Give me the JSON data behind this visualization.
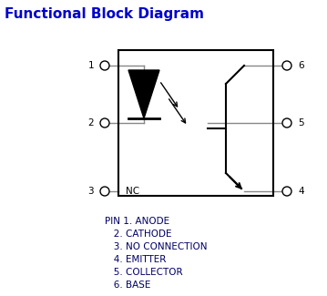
{
  "title": "Functional Block Diagram",
  "title_fontsize": 11,
  "title_color": "#0000cc",
  "background_color": "#ffffff",
  "box_color": "#000000",
  "line_color": "#888888",
  "label_color": "#000066",
  "pin_list": [
    "PIN 1. ANODE",
    "   2. CATHODE",
    "   3. NO CONNECTION",
    "   4. EMITTER",
    "   5. COLLECTOR",
    "   6. BASE"
  ],
  "pin_list_fontsize": 7.5
}
